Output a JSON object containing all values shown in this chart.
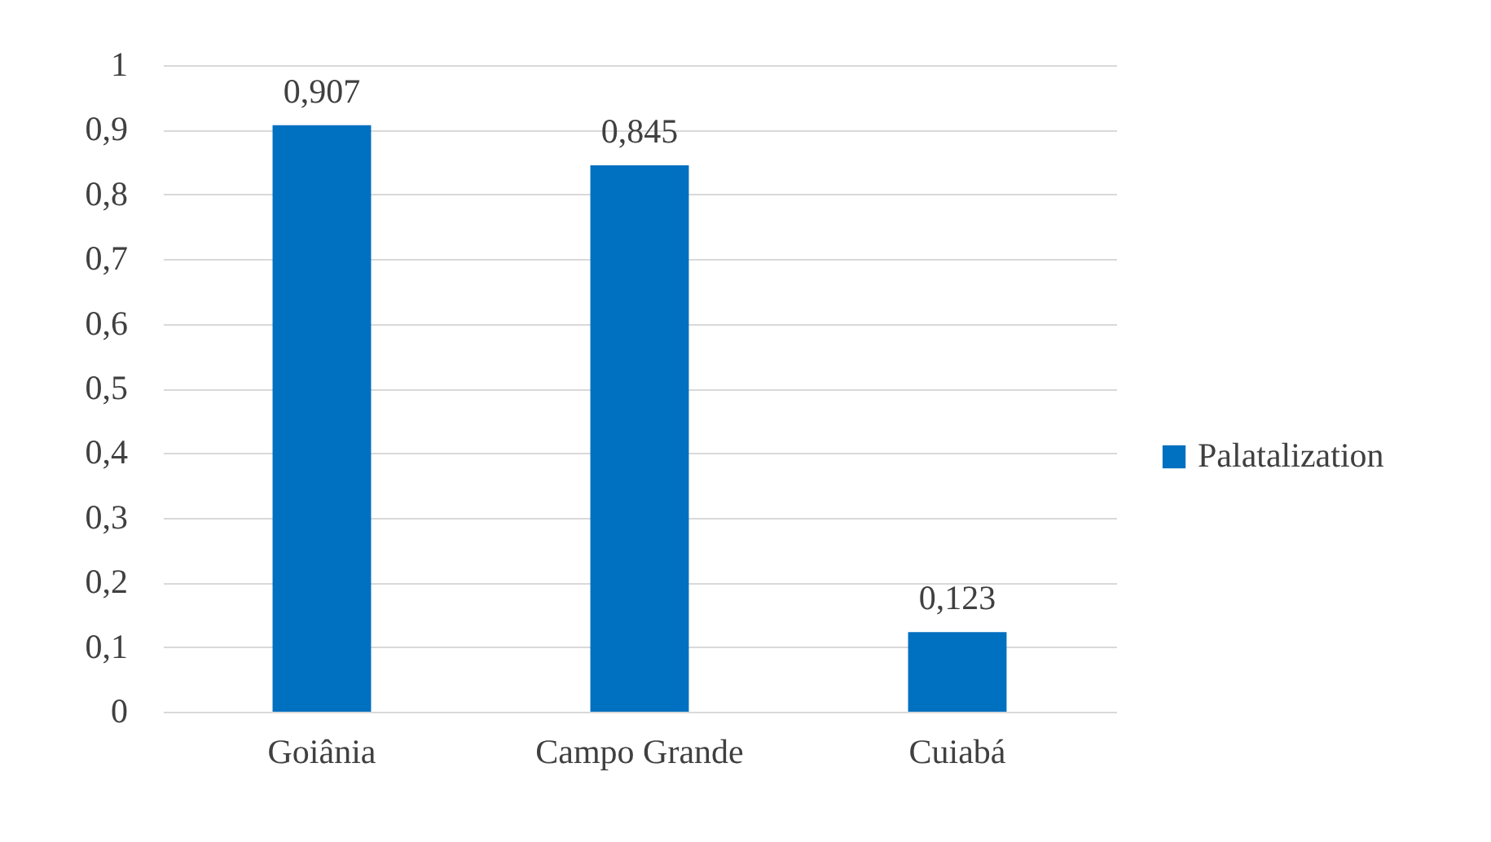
{
  "chart_data": {
    "type": "bar",
    "categories": [
      "Goiânia",
      "Campo Grande",
      "Cuiabá"
    ],
    "series": [
      {
        "name": "Palatalization",
        "color": "#0070c0",
        "values": [
          0.907,
          0.845,
          0.123
        ],
        "value_labels": [
          "0,907",
          "0,845",
          "0,123"
        ]
      }
    ],
    "ylim": [
      0,
      1
    ],
    "yticks": [
      0,
      {
        "value": 0.1,
        "label": "0,1"
      },
      {
        "value": 0.2,
        "label": "0,2"
      },
      {
        "value": 0.3,
        "label": "0,3"
      },
      {
        "value": 0.4,
        "label": "0,4"
      },
      {
        "value": 0.5,
        "label": "0,5"
      },
      {
        "value": 0.6,
        "label": "0,6"
      },
      {
        "value": 0.7,
        "label": "0,7"
      },
      {
        "value": 0.8,
        "label": "0,8"
      },
      {
        "value": 0.9,
        "label": "0,9"
      },
      1
    ],
    "grid": "y",
    "legend": "right"
  }
}
